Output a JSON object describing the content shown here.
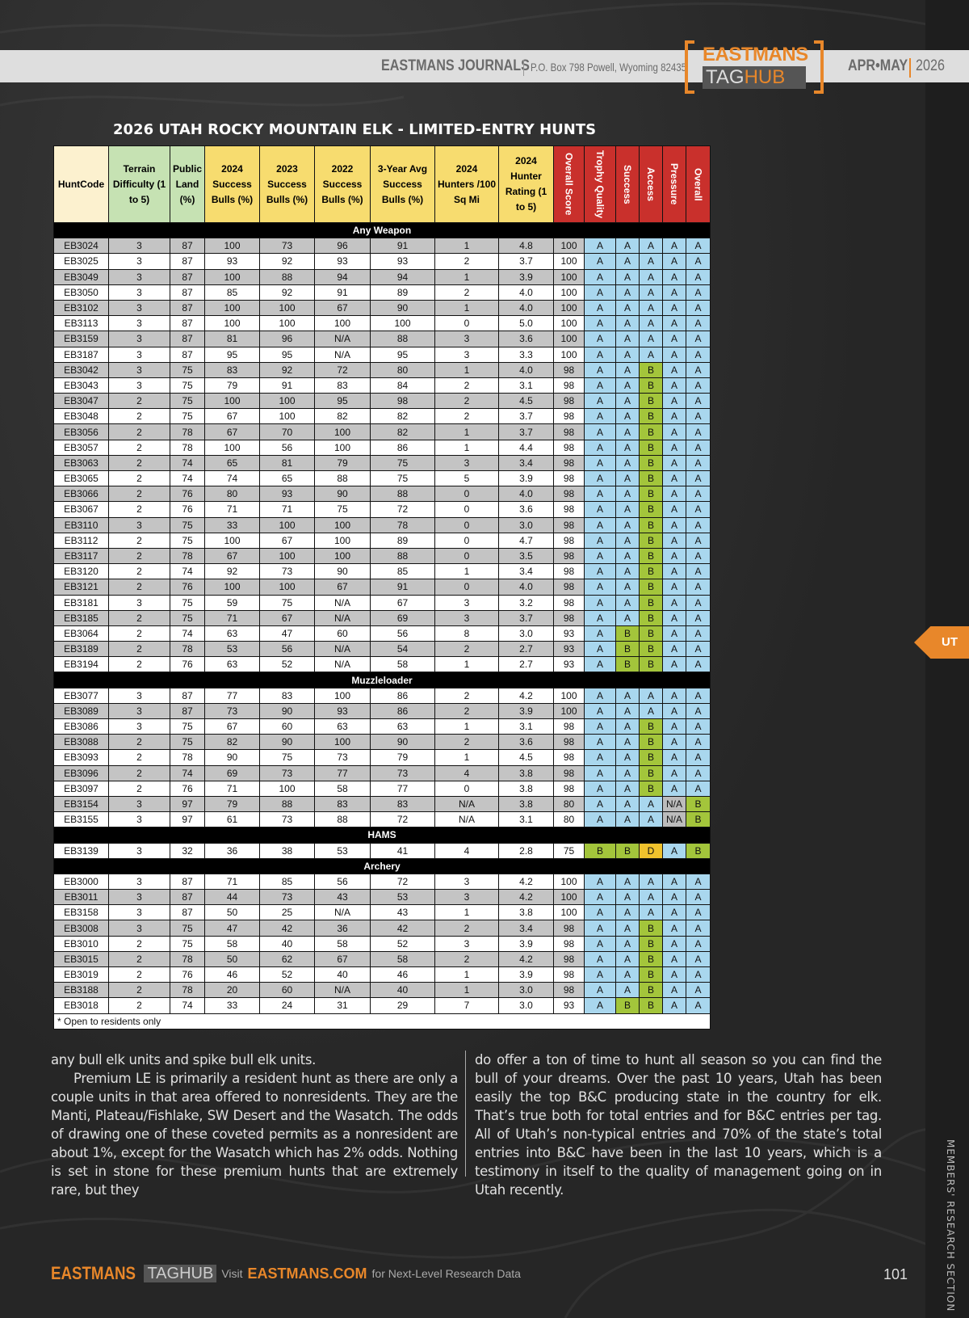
{
  "header": {
    "journal": "EASTMANS JOURNALS",
    "address": "P.O. Box 798 Powell, Wyoming 82435",
    "logo_top": "EASTMANS",
    "logo_tag": "TAG",
    "logo_hub": "HUB",
    "issue": "APR•MAY",
    "year": "2026"
  },
  "title": "2026 UTAH ROCKY MOUNTAIN ELK - LIMITED-ENTRY HUNTS",
  "columns": [
    "HuntCode",
    "Terrain Difficulty (1 to 5)",
    "Public Land (%)",
    "2024 Success Bulls (%)",
    "2023 Success Bulls (%)",
    "2022 Success Bulls (%)",
    "3-Year Avg Success Bulls (%)",
    "2024 Hunters /100 Sq Mi",
    "2024 Hunter Rating (1 to 5)",
    "Overall Score",
    "Trophy Quality",
    "Success",
    "Access",
    "Pressure",
    "Overall"
  ],
  "colors": {
    "hunt": "#fcf1cf",
    "green": "#c6e2b3",
    "yellow": "#f7dc6f",
    "red": "#c9302c",
    "A": "#a9d7ee",
    "B": "#a3c53b",
    "D": "#f0c22d",
    "NA": "#bcbcbc",
    "accent": "#e8872a"
  },
  "sections": [
    {
      "name": "Any Weapon",
      "rows": [
        [
          "EB3024",
          "3",
          "87",
          "100",
          "73",
          "96",
          "91",
          "1",
          "4.8",
          "100",
          "A",
          "A",
          "A",
          "A",
          "A"
        ],
        [
          "EB3025",
          "3",
          "87",
          "93",
          "92",
          "93",
          "93",
          "2",
          "3.7",
          "100",
          "A",
          "A",
          "A",
          "A",
          "A"
        ],
        [
          "EB3049",
          "3",
          "87",
          "100",
          "88",
          "94",
          "94",
          "1",
          "3.9",
          "100",
          "A",
          "A",
          "A",
          "A",
          "A"
        ],
        [
          "EB3050",
          "3",
          "87",
          "85",
          "92",
          "91",
          "89",
          "2",
          "4.0",
          "100",
          "A",
          "A",
          "A",
          "A",
          "A"
        ],
        [
          "EB3102",
          "3",
          "87",
          "100",
          "100",
          "67",
          "90",
          "1",
          "4.0",
          "100",
          "A",
          "A",
          "A",
          "A",
          "A"
        ],
        [
          "EB3113",
          "3",
          "87",
          "100",
          "100",
          "100",
          "100",
          "0",
          "5.0",
          "100",
          "A",
          "A",
          "A",
          "A",
          "A"
        ],
        [
          "EB3159",
          "3",
          "87",
          "81",
          "96",
          "N/A",
          "88",
          "3",
          "3.6",
          "100",
          "A",
          "A",
          "A",
          "A",
          "A"
        ],
        [
          "EB3187",
          "3",
          "87",
          "95",
          "95",
          "N/A",
          "95",
          "3",
          "3.3",
          "100",
          "A",
          "A",
          "A",
          "A",
          "A"
        ],
        [
          "EB3042",
          "3",
          "75",
          "83",
          "92",
          "72",
          "80",
          "1",
          "4.0",
          "98",
          "A",
          "A",
          "B",
          "A",
          "A"
        ],
        [
          "EB3043",
          "3",
          "75",
          "79",
          "91",
          "83",
          "84",
          "2",
          "3.1",
          "98",
          "A",
          "A",
          "B",
          "A",
          "A"
        ],
        [
          "EB3047",
          "2",
          "75",
          "100",
          "100",
          "95",
          "98",
          "2",
          "4.5",
          "98",
          "A",
          "A",
          "B",
          "A",
          "A"
        ],
        [
          "EB3048",
          "2",
          "75",
          "67",
          "100",
          "82",
          "82",
          "2",
          "3.7",
          "98",
          "A",
          "A",
          "B",
          "A",
          "A"
        ],
        [
          "EB3056",
          "2",
          "78",
          "67",
          "70",
          "100",
          "82",
          "1",
          "3.7",
          "98",
          "A",
          "A",
          "B",
          "A",
          "A"
        ],
        [
          "EB3057",
          "2",
          "78",
          "100",
          "56",
          "100",
          "86",
          "1",
          "4.4",
          "98",
          "A",
          "A",
          "B",
          "A",
          "A"
        ],
        [
          "EB3063",
          "2",
          "74",
          "65",
          "81",
          "79",
          "75",
          "3",
          "3.4",
          "98",
          "A",
          "A",
          "B",
          "A",
          "A"
        ],
        [
          "EB3065",
          "2",
          "74",
          "74",
          "65",
          "88",
          "75",
          "5",
          "3.9",
          "98",
          "A",
          "A",
          "B",
          "A",
          "A"
        ],
        [
          "EB3066",
          "2",
          "76",
          "80",
          "93",
          "90",
          "88",
          "0",
          "4.0",
          "98",
          "A",
          "A",
          "B",
          "A",
          "A"
        ],
        [
          "EB3067",
          "2",
          "76",
          "71",
          "71",
          "75",
          "72",
          "0",
          "3.6",
          "98",
          "A",
          "A",
          "B",
          "A",
          "A"
        ],
        [
          "EB3110",
          "3",
          "75",
          "33",
          "100",
          "100",
          "78",
          "0",
          "3.0",
          "98",
          "A",
          "A",
          "B",
          "A",
          "A"
        ],
        [
          "EB3112",
          "2",
          "75",
          "100",
          "67",
          "100",
          "89",
          "0",
          "4.7",
          "98",
          "A",
          "A",
          "B",
          "A",
          "A"
        ],
        [
          "EB3117",
          "2",
          "78",
          "67",
          "100",
          "100",
          "88",
          "0",
          "3.5",
          "98",
          "A",
          "A",
          "B",
          "A",
          "A"
        ],
        [
          "EB3120",
          "2",
          "74",
          "92",
          "73",
          "90",
          "85",
          "1",
          "3.4",
          "98",
          "A",
          "A",
          "B",
          "A",
          "A"
        ],
        [
          "EB3121",
          "2",
          "76",
          "100",
          "100",
          "67",
          "91",
          "0",
          "4.0",
          "98",
          "A",
          "A",
          "B",
          "A",
          "A"
        ],
        [
          "EB3181",
          "3",
          "75",
          "59",
          "75",
          "N/A",
          "67",
          "3",
          "3.2",
          "98",
          "A",
          "A",
          "B",
          "A",
          "A"
        ],
        [
          "EB3185",
          "2",
          "75",
          "71",
          "67",
          "N/A",
          "69",
          "3",
          "3.7",
          "98",
          "A",
          "A",
          "B",
          "A",
          "A"
        ],
        [
          "EB3064",
          "2",
          "74",
          "63",
          "47",
          "60",
          "56",
          "8",
          "3.0",
          "93",
          "A",
          "B",
          "B",
          "A",
          "A"
        ],
        [
          "EB3189",
          "2",
          "78",
          "53",
          "56",
          "N/A",
          "54",
          "2",
          "2.7",
          "93",
          "A",
          "B",
          "B",
          "A",
          "A"
        ],
        [
          "EB3194",
          "2",
          "76",
          "63",
          "52",
          "N/A",
          "58",
          "1",
          "2.7",
          "93",
          "A",
          "B",
          "B",
          "A",
          "A"
        ]
      ]
    },
    {
      "name": "Muzzleloader",
      "rows": [
        [
          "EB3077",
          "3",
          "87",
          "77",
          "83",
          "100",
          "86",
          "2",
          "4.2",
          "100",
          "A",
          "A",
          "A",
          "A",
          "A"
        ],
        [
          "EB3089",
          "3",
          "87",
          "73",
          "90",
          "93",
          "86",
          "2",
          "3.9",
          "100",
          "A",
          "A",
          "A",
          "A",
          "A"
        ],
        [
          "EB3086",
          "3",
          "75",
          "67",
          "60",
          "63",
          "63",
          "1",
          "3.1",
          "98",
          "A",
          "A",
          "B",
          "A",
          "A"
        ],
        [
          "EB3088",
          "2",
          "75",
          "82",
          "90",
          "100",
          "90",
          "2",
          "3.6",
          "98",
          "A",
          "A",
          "B",
          "A",
          "A"
        ],
        [
          "EB3093",
          "2",
          "78",
          "90",
          "75",
          "73",
          "79",
          "1",
          "4.5",
          "98",
          "A",
          "A",
          "B",
          "A",
          "A"
        ],
        [
          "EB3096",
          "2",
          "74",
          "69",
          "73",
          "77",
          "73",
          "4",
          "3.8",
          "98",
          "A",
          "A",
          "B",
          "A",
          "A"
        ],
        [
          "EB3097",
          "2",
          "76",
          "71",
          "100",
          "58",
          "77",
          "0",
          "3.8",
          "98",
          "A",
          "A",
          "B",
          "A",
          "A"
        ],
        [
          "EB3154",
          "3",
          "97",
          "79",
          "88",
          "83",
          "83",
          "N/A",
          "3.8",
          "80",
          "A",
          "A",
          "A",
          "N/A",
          "B"
        ],
        [
          "EB3155",
          "3",
          "97",
          "61",
          "73",
          "88",
          "72",
          "N/A",
          "3.1",
          "80",
          "A",
          "A",
          "A",
          "N/A",
          "B"
        ]
      ]
    },
    {
      "name": "HAMS",
      "rows": [
        [
          "EB3139",
          "3",
          "32",
          "36",
          "38",
          "53",
          "41",
          "4",
          "2.8",
          "75",
          "B",
          "B",
          "D",
          "A",
          "B"
        ]
      ]
    },
    {
      "name": "Archery",
      "rows": [
        [
          "EB3000",
          "3",
          "87",
          "71",
          "85",
          "56",
          "72",
          "3",
          "4.2",
          "100",
          "A",
          "A",
          "A",
          "A",
          "A"
        ],
        [
          "EB3011",
          "3",
          "87",
          "44",
          "73",
          "43",
          "53",
          "3",
          "4.2",
          "100",
          "A",
          "A",
          "A",
          "A",
          "A"
        ],
        [
          "EB3158",
          "3",
          "87",
          "50",
          "25",
          "N/A",
          "43",
          "1",
          "3.8",
          "100",
          "A",
          "A",
          "A",
          "A",
          "A"
        ],
        [
          "EB3008",
          "3",
          "75",
          "47",
          "42",
          "36",
          "42",
          "2",
          "3.4",
          "98",
          "A",
          "A",
          "B",
          "A",
          "A"
        ],
        [
          "EB3010",
          "2",
          "75",
          "58",
          "40",
          "58",
          "52",
          "3",
          "3.9",
          "98",
          "A",
          "A",
          "B",
          "A",
          "A"
        ],
        [
          "EB3015",
          "2",
          "78",
          "50",
          "62",
          "67",
          "58",
          "2",
          "4.2",
          "98",
          "A",
          "A",
          "B",
          "A",
          "A"
        ],
        [
          "EB3019",
          "2",
          "76",
          "46",
          "52",
          "40",
          "46",
          "1",
          "3.9",
          "98",
          "A",
          "A",
          "B",
          "A",
          "A"
        ],
        [
          "EB3188",
          "2",
          "78",
          "20",
          "60",
          "N/A",
          "40",
          "1",
          "3.0",
          "98",
          "A",
          "A",
          "B",
          "A",
          "A"
        ],
        [
          "EB3018",
          "2",
          "74",
          "33",
          "24",
          "31",
          "29",
          "7",
          "3.0",
          "93",
          "A",
          "B",
          "B",
          "A",
          "A"
        ]
      ]
    }
  ],
  "footnote": "* Open to residents only",
  "body": {
    "left": [
      "any bull elk units and spike bull elk units.",
      "Premium LE is primarily a resident hunt as there are only a couple units in that area offered to nonresidents. They are the Manti, Plateau/Fishlake, SW Desert and the Wasatch. The odds of drawing one of these coveted permits as a nonresident are about 1%, except for the Wasatch which has 2% odds. Nothing is set in stone for these premium hunts that are extremely rare, but they"
    ],
    "right": "do offer a ton of time to hunt all season so you can find the bull of your dreams. Over the past 10 years, Utah has been easily the top B&C producing state in the country for elk. That’s true both for total entries and for B&C entries per tag. All of Utah’s non-typical entries and 70% of the state’s total entries into B&C have been in the last 10 years, which is a testimony in itself to the quality of management going on in Utah recently."
  },
  "side": {
    "state_tab": "UT",
    "section": "MEMBERS' RESEARCH SECTION"
  },
  "footer": {
    "brand": "EASTMANS",
    "tag": "TAG",
    "hub": "HUB",
    "visit": "Visit",
    "site": "EASTMANS.COM",
    "tagline": "for Next-Level Research Data",
    "page": "101"
  }
}
